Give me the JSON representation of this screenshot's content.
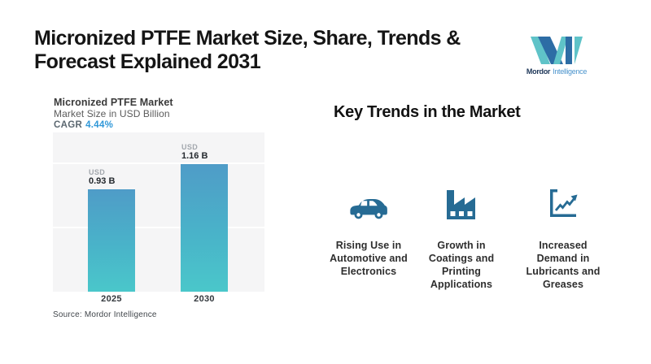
{
  "page": {
    "title_lines": [
      "Micronized PTFE Market Size, Share, Trends &",
      "Forecast Explained 2031"
    ]
  },
  "logo": {
    "brand_primary": "Mordor",
    "brand_secondary": "Intelligence"
  },
  "chart_card": {
    "title": "Micronized PTFE Market",
    "subtitle": "Market Size in USD Billion",
    "cagr_label": "CAGR",
    "cagr_value": "4.44%",
    "source": "Source: Mordor Intelligence"
  },
  "chart_data": {
    "type": "bar",
    "title": "Micronized PTFE Market",
    "subtitle": "Market Size in USD Billion",
    "unit": "USD Billion",
    "cagr_percent": 4.44,
    "categories": [
      "2025",
      "2030"
    ],
    "values": [
      0.93,
      1.16
    ],
    "bar_labels": [
      {
        "currency": "USD",
        "value": "0.93 B"
      },
      {
        "currency": "USD",
        "value": "1.16 B"
      }
    ],
    "ylim": [
      0,
      1.4
    ],
    "grid": "off",
    "legend_position": "none",
    "bar_colors": {
      "top": "#4F9CC8",
      "bottom": "#4AC7CA"
    }
  },
  "key_trends": {
    "heading": "Key Trends in the Market",
    "items": [
      {
        "icon": "car-icon",
        "label": "Rising Use in Automotive and Electronics",
        "lines": [
          "Rising Use in",
          "Automotive and",
          "Electronics"
        ]
      },
      {
        "icon": "factory-icon",
        "label": "Growth in Coatings and Printing Applications",
        "lines": [
          "Growth in",
          "Coatings and",
          "Printing",
          "Applications"
        ]
      },
      {
        "icon": "growth-chart-icon",
        "label": "Increased Demand in Lubricants and Greases",
        "lines": [
          "Increased",
          "Demand in",
          "Lubricants and",
          "Greases"
        ]
      }
    ]
  },
  "colors": {
    "accent_blue": "#2F97D8",
    "icon_blue": "#266B94",
    "logo_teal": "#5FC3C8",
    "logo_navy": "#2D6DA5",
    "panel_gray": "#F5F5F6",
    "title_text": "#151515"
  }
}
